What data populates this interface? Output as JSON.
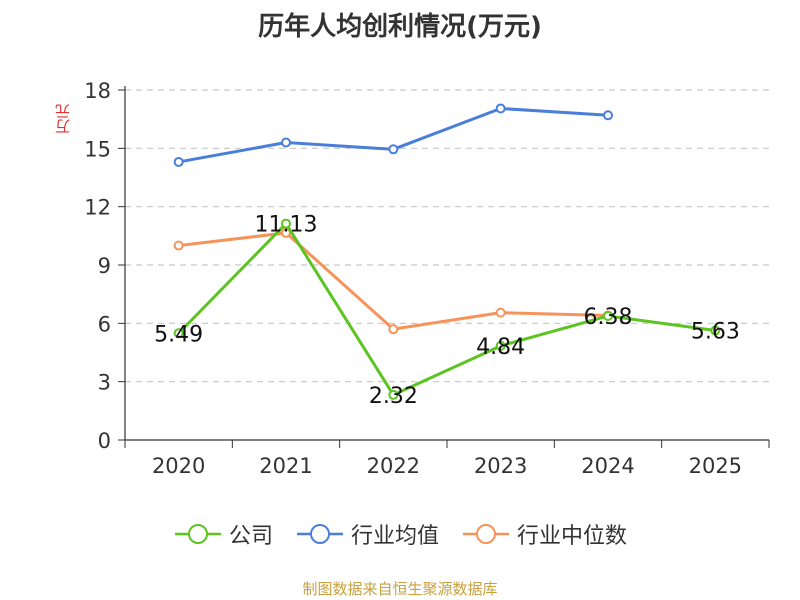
{
  "chart_data": {
    "type": "line",
    "title": "历年人均创利情况(万元)",
    "ylabel": "万元",
    "xlabel": "",
    "categories": [
      "2020",
      "2021",
      "2022",
      "2023",
      "2024",
      "2025"
    ],
    "ylim": [
      0,
      18
    ],
    "yticks": [
      0,
      3,
      6,
      9,
      12,
      15,
      18
    ],
    "grid": true,
    "legend_position": "bottom",
    "series": [
      {
        "name": "公司",
        "color": "#5cc421",
        "values": [
          5.49,
          11.13,
          2.32,
          4.84,
          6.38,
          5.63
        ],
        "data_labels": [
          "5.49",
          "11.13",
          "2.32",
          "4.84",
          "6.38",
          "5.63"
        ]
      },
      {
        "name": "行业均值",
        "color": "#4a7fd9",
        "values": [
          14.3,
          15.3,
          14.95,
          17.05,
          16.7,
          null
        ]
      },
      {
        "name": "行业中位数",
        "color": "#f5935a",
        "values": [
          10.0,
          10.65,
          5.7,
          6.55,
          6.4,
          null
        ]
      }
    ]
  },
  "source": "制图数据来自恒生聚源数据库"
}
